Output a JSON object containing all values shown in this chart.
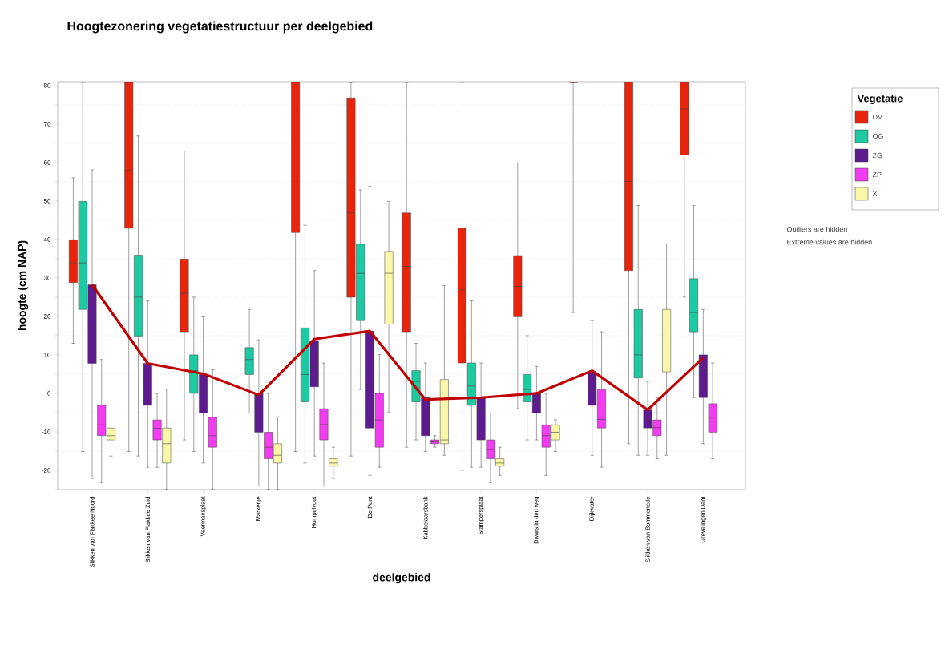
{
  "chart_data": {
    "type": "box",
    "title": "Hoogtezonering vegetatiestructuur per deelgebied",
    "xlabel": "deelgebied",
    "ylabel": "hoogte (cm NAP)",
    "legend_title": "Vegetatie",
    "legend": "right",
    "grid": "y",
    "categories": [
      "Slikken van Flakkee Noord",
      "Slikken van Flakkee Zuid",
      "Veermansplaat",
      "Markenje",
      "Hompelvoet",
      "De Punt",
      "Kabbelaarsbank",
      "Stampersplaat",
      "Dwars in den weg",
      "Dijkwater",
      "Slikken van Bommenede",
      "Grevelingen Dam"
    ],
    "ylim": [
      -25,
      81
    ],
    "yticks": [
      {
        "value": -25,
        "label": null
      },
      -20,
      {
        "value": -15,
        "label": null
      },
      -10,
      {
        "value": -5,
        "label": null
      },
      0,
      {
        "value": 5,
        "label": null
      },
      10,
      {
        "value": 15,
        "label": null
      },
      20,
      {
        "value": 25,
        "label": null
      },
      30,
      {
        "value": 35,
        "label": null
      },
      40,
      {
        "value": 45,
        "label": null
      },
      50,
      {
        "value": 55,
        "label": null
      },
      60,
      {
        "value": 65,
        "label": null
      },
      70,
      {
        "value": 75,
        "label": null
      },
      80
    ],
    "series": [
      {
        "name": "DV",
        "color": "#e8250c",
        "boxes": [
          {
            "low": 13.0,
            "q1": 28.8,
            "median": 33.9,
            "q3": 39.9,
            "high": 56.0
          },
          {
            "low": -15.1,
            "q1": 42.9,
            "median": 57.9,
            "q3": 81,
            "high": 81
          },
          {
            "low": -12.1,
            "q1": 16.0,
            "median": 26.0,
            "q3": 34.9,
            "high": 63.0
          },
          null,
          {
            "low": -15.1,
            "q1": 41.8,
            "median": 63.0,
            "q3": 81,
            "high": 81
          },
          {
            "low": -16.3,
            "q1": 25.0,
            "median": 46.9,
            "q3": 76.8,
            "high": 81
          },
          {
            "low": -14.0,
            "q1": 16.0,
            "median": 33.0,
            "q3": 46.9,
            "high": 81
          },
          {
            "low": -20.0,
            "q1": 7.9,
            "median": 26.9,
            "q3": 42.9,
            "high": 81
          },
          {
            "low": -4.0,
            "q1": 19.9,
            "median": 27.8,
            "q3": 35.8,
            "high": 59.9
          },
          {
            "low": 21.0,
            "q1": 81,
            "median": 81,
            "q3": 81,
            "high": 81
          },
          {
            "low": -13.1,
            "q1": 31.9,
            "median": 55.1,
            "q3": 81,
            "high": 81
          },
          {
            "low": 25.0,
            "q1": 61.9,
            "median": 73.9,
            "q3": 81,
            "high": 81
          }
        ]
      },
      {
        "name": "OG",
        "color": "#1dc9a0",
        "boxes": [
          {
            "low": -15.1,
            "q1": 21.8,
            "median": 33.9,
            "q3": 49.9,
            "high": 81
          },
          {
            "low": -16.3,
            "q1": 14.9,
            "median": 25.0,
            "q3": 35.9,
            "high": 66.9
          },
          {
            "low": -15.1,
            "q1": 0,
            "median": 5.9,
            "q3": 10.0,
            "high": 25.0
          },
          {
            "low": -5.1,
            "q1": 4.9,
            "median": 8.8,
            "q3": 11.9,
            "high": 21.8
          },
          {
            "low": -18.1,
            "q1": -2.2,
            "median": 4.9,
            "q3": 17.0,
            "high": 43.7
          },
          {
            "low": 1.0,
            "q1": 18.9,
            "median": 31.2,
            "q3": 38.8,
            "high": 52.9
          },
          {
            "low": -12.1,
            "q1": -2.2,
            "median": 3.1,
            "q3": 5.9,
            "high": 13.0
          },
          {
            "low": -19.2,
            "q1": -3.1,
            "median": 1.9,
            "q3": 7.9,
            "high": 24.0
          },
          {
            "low": -12.1,
            "q1": -2.2,
            "median": 1.0,
            "q3": 4.9,
            "high": 15.0
          },
          null,
          {
            "low": -16.1,
            "q1": 4.0,
            "median": 10.0,
            "q3": 21.8,
            "high": 48.8
          },
          {
            "low": -1.1,
            "q1": 16.0,
            "median": 21.0,
            "q3": 29.8,
            "high": 48.8
          }
        ]
      },
      {
        "name": "ZG",
        "color": "#5e1a8f",
        "boxes": [
          {
            "low": -22.1,
            "q1": 7.8,
            "median": 17.0,
            "q3": 28.2,
            "high": 58.1
          },
          {
            "low": -19.2,
            "q1": -3.1,
            "median": 3.3,
            "q3": 7.8,
            "high": 24.0
          },
          {
            "low": -18.1,
            "q1": -5.1,
            "median": 0,
            "q3": 4.9,
            "high": 19.9
          },
          {
            "low": -24.1,
            "q1": -10.1,
            "median": -4.0,
            "q3": 0,
            "high": 13.9
          },
          {
            "low": -16.3,
            "q1": 1.7,
            "median": 6.9,
            "q3": 13.7,
            "high": 31.9
          },
          {
            "low": -21.3,
            "q1": -9.0,
            "median": 1.9,
            "q3": 16.2,
            "high": 53.8
          },
          {
            "low": -15.1,
            "q1": -11.0,
            "median": -8.2,
            "q3": -1.1,
            "high": 7.9
          },
          {
            "low": -19.2,
            "q1": -12.1,
            "median": -4.3,
            "q3": -1.1,
            "high": 7.9
          },
          {
            "low": -12.1,
            "q1": -5.1,
            "median": -2.2,
            "q3": 0,
            "high": 7.0
          },
          {
            "low": -16.1,
            "q1": -3.1,
            "median": 1.0,
            "q3": 5.2,
            "high": 18.9
          },
          {
            "low": -16.1,
            "q1": -9.0,
            "median": -6.8,
            "q3": -4.3,
            "high": 3.1
          },
          {
            "low": -13.1,
            "q1": -1.1,
            "median": 5.9,
            "q3": 10.0,
            "high": 21.8
          }
        ]
      },
      {
        "name": "ZP",
        "color": "#f23cf0",
        "boxes": [
          {
            "low": -23.2,
            "q1": -11.0,
            "median": -8.2,
            "q3": -3.1,
            "high": 8.8
          },
          {
            "low": -19.2,
            "q1": -12.1,
            "median": -9.1,
            "q3": -6.9,
            "high": 0
          },
          {
            "low": -25,
            "q1": -14.0,
            "median": -11.0,
            "q3": -6.2,
            "high": 6.1
          },
          {
            "low": -25,
            "q1": -17.0,
            "median": -14.0,
            "q3": -10.1,
            "high": 0
          },
          {
            "low": -24.1,
            "q1": -12.1,
            "median": -8.1,
            "q3": -4.0,
            "high": 7.9
          },
          {
            "low": -19.2,
            "q1": -14.0,
            "median": -6.9,
            "q3": 0,
            "high": 10.1
          },
          {
            "low": -14.0,
            "q1": -13.1,
            "median": -12.6,
            "q3": -12.1,
            "high": -11.0
          },
          {
            "low": -23.2,
            "q1": -17.0,
            "median": -14.6,
            "q3": -12.1,
            "high": -5.1
          },
          {
            "low": -21.3,
            "q1": -14.0,
            "median": -11.0,
            "q3": -8.2,
            "high": 0
          },
          {
            "low": -19.2,
            "q1": -9.0,
            "median": -6.8,
            "q3": 1.0,
            "high": 16.0
          },
          {
            "low": -17.0,
            "q1": -11.0,
            "median": -8.9,
            "q3": -6.9,
            "high": -1.1
          },
          {
            "low": -17.0,
            "q1": -10.1,
            "median": -6.2,
            "q3": -2.7,
            "high": 7.9
          }
        ]
      },
      {
        "name": "X",
        "color": "#fbf7a9",
        "boxes": [
          {
            "low": -16.3,
            "q1": -12.1,
            "median": -11.0,
            "q3": -9.0,
            "high": -5.1
          },
          {
            "low": -25,
            "q1": -18.1,
            "median": -13.1,
            "q3": -9.0,
            "high": 1.1
          },
          null,
          {
            "low": -25,
            "q1": -18.1,
            "median": -16.1,
            "q3": -13.1,
            "high": -6.1
          },
          {
            "low": -22.1,
            "q1": -18.9,
            "median": -18.1,
            "q3": -17.0,
            "high": -14.0
          },
          {
            "low": -5.0,
            "q1": 18.0,
            "median": 31.2,
            "q3": 36.9,
            "high": 49.9
          },
          {
            "low": -16.1,
            "q1": -13.1,
            "median": -12.1,
            "q3": 3.6,
            "high": 28.0
          },
          {
            "low": -21.3,
            "q1": -18.9,
            "median": -18.1,
            "q3": -17.0,
            "high": -14.0
          },
          {
            "low": -15.1,
            "q1": -12.1,
            "median": -10.1,
            "q3": -8.2,
            "high": -6.9
          },
          null,
          {
            "low": -16.1,
            "q1": 5.6,
            "median": 18.0,
            "q3": 21.8,
            "high": 38.8
          },
          null
        ]
      },
      {
        "type": "line",
        "color": "#c00000",
        "values": [
          28.2,
          7.8,
          5.1,
          -0.4,
          14.1,
          16.2,
          -1.6,
          -1.1,
          0,
          5.9,
          -4.3,
          9.3
        ]
      }
    ],
    "annotations": [
      "Outliers are hidden",
      "Extreme values are hidden"
    ]
  }
}
